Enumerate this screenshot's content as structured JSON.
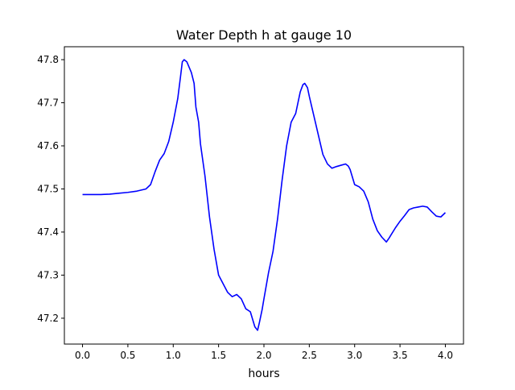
{
  "chart_data": {
    "type": "line",
    "title": "Water Depth h at gauge 10",
    "xlabel": "hours",
    "ylabel": "",
    "xlim": [
      -0.2,
      4.2
    ],
    "ylim": [
      47.14,
      47.83
    ],
    "xticks": [
      0.0,
      0.5,
      1.0,
      1.5,
      2.0,
      2.5,
      3.0,
      3.5,
      4.0
    ],
    "xtick_labels": [
      "0.0",
      "0.5",
      "1.0",
      "1.5",
      "2.0",
      "2.5",
      "3.0",
      "3.5",
      "4.0"
    ],
    "yticks": [
      47.2,
      47.3,
      47.4,
      47.5,
      47.6,
      47.7,
      47.8
    ],
    "ytick_labels": [
      "47.2",
      "47.3",
      "47.4",
      "47.5",
      "47.6",
      "47.7",
      "47.8"
    ],
    "grid": false,
    "legend": "none",
    "series": [
      {
        "color": "#0000ff",
        "x": [
          0.0,
          0.1,
          0.2,
          0.3,
          0.4,
          0.5,
          0.6,
          0.7,
          0.75,
          0.8,
          0.85,
          0.9,
          0.95,
          1.0,
          1.05,
          1.08,
          1.1,
          1.12,
          1.15,
          1.18,
          1.2,
          1.23,
          1.25,
          1.28,
          1.3,
          1.35,
          1.4,
          1.45,
          1.5,
          1.55,
          1.6,
          1.65,
          1.7,
          1.75,
          1.8,
          1.85,
          1.9,
          1.93,
          1.95,
          1.98,
          2.0,
          2.05,
          2.1,
          2.15,
          2.2,
          2.25,
          2.3,
          2.35,
          2.38,
          2.4,
          2.43,
          2.45,
          2.48,
          2.5,
          2.55,
          2.6,
          2.65,
          2.7,
          2.75,
          2.8,
          2.85,
          2.9,
          2.93,
          2.95,
          3.0,
          3.05,
          3.1,
          3.15,
          3.2,
          3.25,
          3.3,
          3.35,
          3.38,
          3.4,
          3.45,
          3.5,
          3.55,
          3.6,
          3.65,
          3.7,
          3.75,
          3.8,
          3.85,
          3.9,
          3.95,
          4.0
        ],
        "y": [
          47.487,
          47.487,
          47.487,
          47.488,
          47.49,
          47.492,
          47.495,
          47.5,
          47.51,
          47.54,
          47.567,
          47.582,
          47.61,
          47.655,
          47.71,
          47.76,
          47.795,
          47.8,
          47.795,
          47.78,
          47.77,
          47.745,
          47.69,
          47.655,
          47.605,
          47.53,
          47.435,
          47.36,
          47.3,
          47.28,
          47.26,
          47.25,
          47.255,
          47.245,
          47.222,
          47.215,
          47.18,
          47.172,
          47.19,
          47.22,
          47.245,
          47.305,
          47.355,
          47.43,
          47.52,
          47.6,
          47.655,
          47.675,
          47.705,
          47.725,
          47.742,
          47.745,
          47.735,
          47.715,
          47.67,
          47.625,
          47.58,
          47.558,
          47.548,
          47.552,
          47.555,
          47.558,
          47.553,
          47.545,
          47.51,
          47.505,
          47.495,
          47.47,
          47.43,
          47.403,
          47.388,
          47.377,
          47.386,
          47.393,
          47.41,
          47.425,
          47.438,
          47.452,
          47.456,
          47.458,
          47.46,
          47.458,
          47.447,
          47.437,
          47.435,
          47.445
        ]
      }
    ]
  }
}
